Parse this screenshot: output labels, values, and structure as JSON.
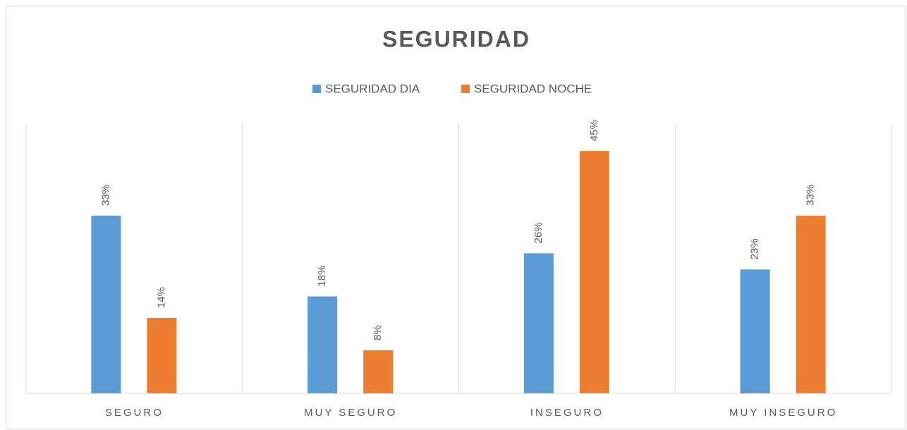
{
  "chart_data": {
    "type": "bar",
    "title": "SEGURIDAD",
    "categories": [
      "SEGURO",
      "MUY SEGURO",
      "INSEGURO",
      "MUY INSEGURO"
    ],
    "series": [
      {
        "name": "SEGURIDAD DIA",
        "color": "#5b9bd5",
        "values": [
          33,
          18,
          26,
          23
        ],
        "value_labels": [
          "33%",
          "18%",
          "26%",
          "23%"
        ]
      },
      {
        "name": "SEGURIDAD NOCHE",
        "color": "#ed7d31",
        "values": [
          14,
          8,
          45,
          33
        ],
        "value_labels": [
          "14%",
          "8%",
          "45%",
          "33%"
        ]
      }
    ],
    "ylim": [
      0,
      50
    ],
    "legend": "top"
  }
}
